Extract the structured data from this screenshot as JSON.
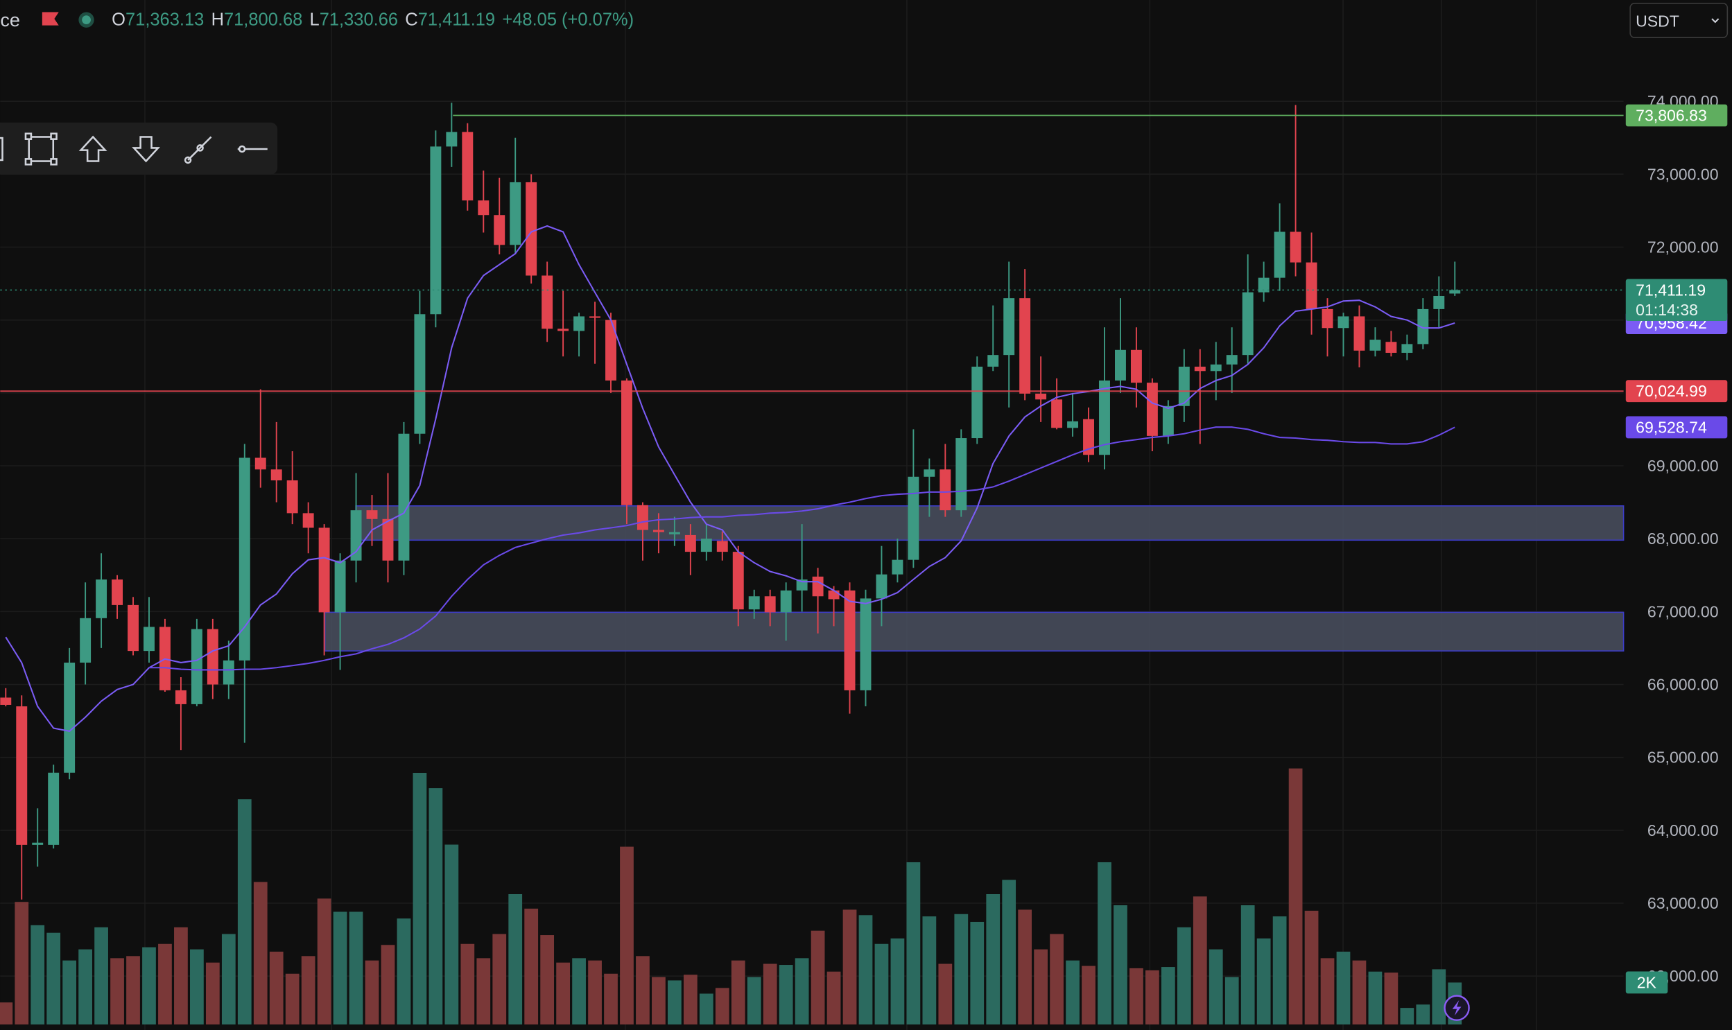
{
  "header": {
    "symbol": "ce",
    "o_key": "O",
    "open": "71,363.13",
    "h_key": "H",
    "high": "71,800.68",
    "l_key": "L",
    "low": "71,330.66",
    "c_key": "C",
    "close": "71,411.19",
    "change": "+48.05 (+0.07%)"
  },
  "currency": "USDT",
  "chart_data": {
    "type": "candlestick",
    "ylim": [
      61260,
      75390
    ],
    "yticks": [
      {
        "value": 74000,
        "label": "74,000.00"
      },
      {
        "value": 73000,
        "label": "73,000.00"
      },
      {
        "value": 72000,
        "label": "72,000.00"
      },
      {
        "value": 71000,
        "label": "71,000.00"
      },
      {
        "value": 70000,
        "label": "70,000.00"
      },
      {
        "value": 69000,
        "label": "69,000.00"
      },
      {
        "value": 68000,
        "label": "68,000.00"
      },
      {
        "value": 67000,
        "label": "67,000.00"
      },
      {
        "value": 66000,
        "label": "66,000.00"
      },
      {
        "value": 65000,
        "label": "65,000.00"
      },
      {
        "value": 64000,
        "label": "64,000.00"
      },
      {
        "value": 63000,
        "label": "63,000.00"
      },
      {
        "value": 62000,
        "label": "62,000.00"
      }
    ],
    "up_color": "#3d9a83",
    "down_color": "#e2444f",
    "volume_up_color": "#2b6a5f",
    "volume_down_color": "#7a3838",
    "open": [
      65820,
      65700,
      63800,
      63800,
      64790,
      66300,
      66910,
      67440,
      67090,
      66460,
      66790,
      65920,
      65730,
      66760,
      66000,
      66330,
      69110,
      68950,
      68800,
      68350,
      68150,
      66990,
      67700,
      68390,
      68270,
      67700,
      69440,
      71080,
      73380,
      73580,
      72640,
      72440,
      72030,
      72890,
      71610,
      70880,
      70850,
      71050,
      71000,
      70170,
      68460,
      68120,
      68060,
      68050,
      67820,
      67970,
      67820,
      67030,
      67210,
      66990,
      67290,
      67480,
      67290,
      67290,
      65920,
      67180,
      67510,
      67710,
      68850,
      68950,
      68390,
      69380,
      70360,
      70520,
      71300,
      69990,
      69910,
      69520,
      69640,
      69150,
      70170,
      70590,
      70140,
      69410,
      69820,
      70360,
      70300,
      70390,
      70520,
      71380,
      71580,
      72210,
      71790,
      71150,
      70890,
      71050,
      70580,
      70700,
      70550,
      70670,
      71150,
      71363.13
    ],
    "high": [
      65950,
      65850,
      64300,
      64900,
      66500,
      67400,
      67800,
      67500,
      67200,
      67200,
      66900,
      66100,
      66900,
      66900,
      66600,
      69300,
      70050,
      69600,
      69200,
      68500,
      68200,
      67800,
      68900,
      68600,
      68900,
      69600,
      71400,
      73600,
      73980,
      73700,
      73050,
      72950,
      73500,
      73000,
      71800,
      71400,
      71100,
      71250,
      71100,
      70200,
      68500,
      68350,
      68300,
      68200,
      68200,
      68100,
      67900,
      67300,
      67300,
      67400,
      68200,
      67600,
      67350,
      67400,
      67300,
      67900,
      68000,
      69500,
      69100,
      69300,
      69500,
      70500,
      71200,
      71800,
      71700,
      70500,
      70200,
      70000,
      69800,
      70900,
      71300,
      70900,
      70200,
      69900,
      70600,
      70600,
      70700,
      70900,
      71900,
      71800,
      72600,
      73950,
      72200,
      71300,
      71100,
      71200,
      70900,
      70850,
      70800,
      71300,
      71600,
      71800.68
    ],
    "low": [
      65700,
      63050,
      63500,
      63750,
      64700,
      66000,
      66500,
      66900,
      66400,
      66300,
      65900,
      65100,
      65700,
      65800,
      65800,
      65200,
      68700,
      68500,
      68200,
      67800,
      66400,
      66200,
      67400,
      67900,
      67400,
      67500,
      69300,
      70900,
      73100,
      72500,
      72200,
      71900,
      71900,
      71500,
      70700,
      70500,
      70500,
      70400,
      70000,
      68200,
      67700,
      67800,
      67900,
      67500,
      67700,
      67700,
      66800,
      66900,
      66800,
      66600,
      67000,
      66700,
      66800,
      65600,
      65700,
      66800,
      67400,
      67600,
      68300,
      68300,
      68300,
      69300,
      70300,
      69800,
      69900,
      69600,
      69500,
      69400,
      69050,
      68950,
      70000,
      69800,
      69200,
      69300,
      69600,
      69300,
      69900,
      70000,
      70400,
      71250,
      71400,
      71600,
      70800,
      70500,
      70500,
      70350,
      70500,
      70500,
      70450,
      70600,
      70900,
      71330.66
    ],
    "close": [
      65720,
      63800,
      63830,
      64790,
      66300,
      66910,
      67440,
      67090,
      66460,
      66790,
      65920,
      65730,
      66760,
      66000,
      66330,
      69110,
      68950,
      68800,
      68350,
      68150,
      66990,
      67700,
      68390,
      68270,
      67700,
      69440,
      71080,
      73380,
      73580,
      72640,
      72440,
      72030,
      72890,
      71610,
      70880,
      70850,
      71050,
      71030,
      70170,
      68460,
      68120,
      68090,
      68090,
      67820,
      68000,
      67820,
      67030,
      67210,
      66990,
      67290,
      67440,
      67210,
      67170,
      65920,
      67180,
      67510,
      67710,
      68850,
      68950,
      68390,
      69380,
      70360,
      70520,
      71300,
      69990,
      69910,
      69520,
      69610,
      69150,
      70170,
      70590,
      70140,
      69410,
      69820,
      70360,
      70300,
      70390,
      70520,
      71380,
      71580,
      72210,
      71790,
      71150,
      70890,
      71050,
      70580,
      70730,
      70550,
      70670,
      71150,
      71330,
      71411.19
    ],
    "volume": [
      1050,
      5840,
      4730,
      4370,
      3050,
      3580,
      4630,
      3160,
      3260,
      3680,
      3840,
      4630,
      3580,
      2950,
      4310,
      10730,
      6790,
      3470,
      2420,
      3260,
      6000,
      5370,
      5370,
      3050,
      3790,
      5050,
      11990,
      11260,
      8570,
      3840,
      3160,
      4310,
      6210,
      5520,
      4260,
      2950,
      3160,
      3050,
      2420,
      8470,
      3260,
      2260,
      2100,
      2370,
      1470,
      1740,
      3050,
      2260,
      2890,
      2840,
      3160,
      4470,
      2520,
      5470,
      5210,
      3840,
      4100,
      7730,
      5150,
      2890,
      5260,
      4890,
      6210,
      6890,
      5470,
      3580,
      4310,
      3050,
      2790,
      7730,
      5680,
      2680,
      2580,
      2740,
      4630,
      6100,
      3580,
      2260,
      5680,
      4100,
      5150,
      12200,
      5420,
      3160,
      3470,
      3050,
      2520,
      2470,
      790,
      950,
      2630,
      2000
    ],
    "volume_label": "2K",
    "current_label": "71,411.19",
    "countdown": "01:14:38",
    "current_color": "#2e8c74",
    "lines": [
      {
        "color": "#7b5cf5",
        "label": "70,958.42",
        "values": [
          66650,
          66300,
          65700,
          65400,
          65360,
          65550,
          65770,
          65930,
          66000,
          66230,
          66350,
          66300,
          66330,
          66460,
          66530,
          66790,
          67090,
          67240,
          67520,
          67710,
          67740,
          67670,
          67820,
          68120,
          68240,
          68350,
          68730,
          69640,
          70620,
          71300,
          71610,
          71760,
          71910,
          72210,
          72290,
          72210,
          71760,
          71380,
          71000,
          70390,
          69790,
          69260,
          68880,
          68500,
          68200,
          68120,
          67820,
          67670,
          67550,
          67490,
          67410,
          67410,
          67290,
          67140,
          67110,
          67170,
          67260,
          67440,
          67620,
          67740,
          67970,
          68420,
          69030,
          69410,
          69670,
          69820,
          69940,
          69990,
          70020,
          70060,
          70090,
          70050,
          69860,
          69790,
          69860,
          70060,
          70170,
          70240,
          70390,
          70620,
          70920,
          71120,
          71150,
          71180,
          71260,
          71270,
          71180,
          71050,
          71000,
          70890,
          70890,
          70958.42
        ]
      },
      {
        "color": "#6a4ae8",
        "label": "69,528.74",
        "values": [
          null,
          null,
          null,
          null,
          null,
          null,
          null,
          null,
          null,
          66230,
          66230,
          66210,
          66200,
          66200,
          66200,
          66210,
          66210,
          66230,
          66260,
          66290,
          66330,
          66380,
          66420,
          66490,
          66550,
          66640,
          66760,
          66940,
          67210,
          67440,
          67640,
          67770,
          67880,
          67940,
          68000,
          68050,
          68080,
          68120,
          68150,
          68180,
          68230,
          68260,
          68270,
          68290,
          68300,
          68300,
          68320,
          68330,
          68350,
          68360,
          68380,
          68410,
          68460,
          68500,
          68550,
          68590,
          68610,
          68620,
          68640,
          68640,
          68650,
          68670,
          68710,
          68790,
          68880,
          68970,
          69060,
          69150,
          69230,
          69290,
          69330,
          69360,
          69390,
          69410,
          69440,
          69490,
          69530,
          69530,
          69500,
          69440,
          69390,
          69380,
          69360,
          69350,
          69330,
          69320,
          69320,
          69300,
          69300,
          69330,
          69420,
          69528.74
        ]
      }
    ],
    "hlines": [
      {
        "value": 73806.83,
        "label": "73,806.83",
        "color": "#5fae5f"
      },
      {
        "value": 70024.99,
        "label": "70,024.99",
        "color": "#e2444f"
      }
    ],
    "zones": [
      {
        "from": 67980,
        "to": 68450,
        "color": "#4a5060",
        "border": "#3c3cc8"
      },
      {
        "from": 66460,
        "to": 66990,
        "color": "#4a5060",
        "border": "#3c3cc8"
      }
    ]
  }
}
